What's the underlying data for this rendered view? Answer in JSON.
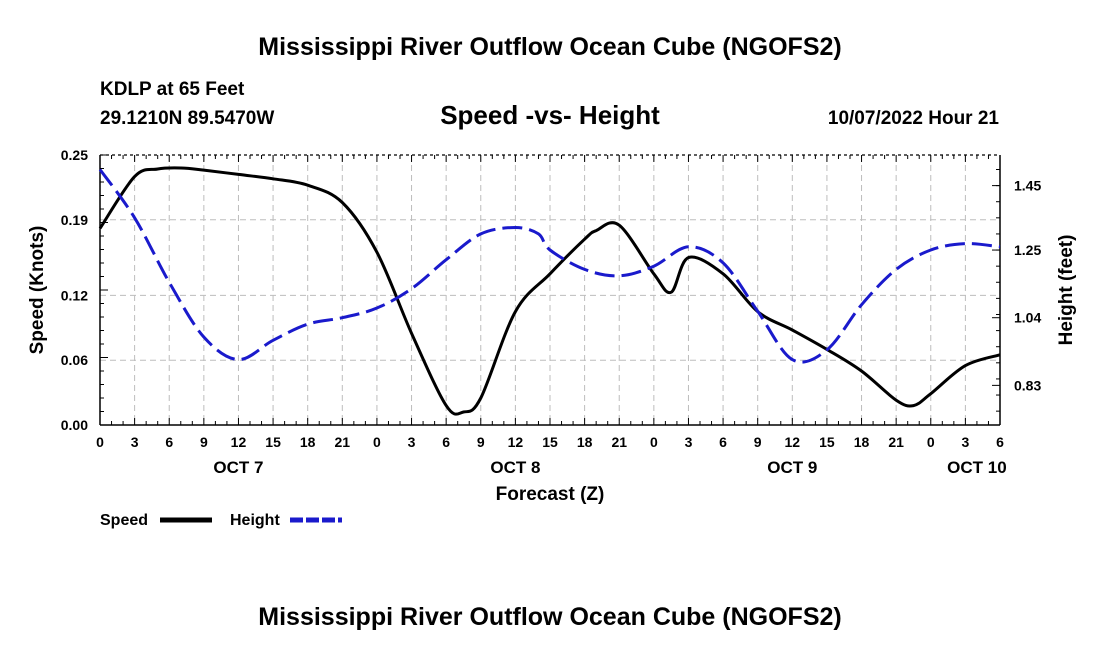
{
  "page": {
    "title_top": "Mississippi River Outflow Ocean Cube (NGOFS2)",
    "title_bottom": "Mississippi River Outflow Ocean Cube (NGOFS2)",
    "station": "KDLP at 65 Feet",
    "coords": "29.1210N  89.5470W",
    "subtitle": "Speed -vs- Height",
    "datetime": "10/07/2022 Hour 21"
  },
  "chart_data": {
    "type": "line",
    "title": "Speed -vs- Height",
    "xlabel": "Forecast (Z)",
    "ylabel": "Speed (Knots)",
    "y2label": "Height (feet)",
    "xlim": [
      0,
      78
    ],
    "ylim": [
      0,
      0.25
    ],
    "y2lim": [
      0.707,
      1.545
    ],
    "grid": true,
    "x_ticks": [
      0,
      3,
      6,
      9,
      12,
      15,
      18,
      21,
      24,
      27,
      30,
      33,
      36,
      39,
      42,
      45,
      48,
      51,
      54,
      57,
      60,
      63,
      66,
      69,
      72,
      75,
      78
    ],
    "x_tick_labels": [
      "0",
      "3",
      "6",
      "9",
      "12",
      "15",
      "18",
      "21",
      "0",
      "3",
      "6",
      "9",
      "12",
      "15",
      "18",
      "21",
      "0",
      "3",
      "6",
      "9",
      "12",
      "15",
      "18",
      "21",
      "0",
      "3",
      "6"
    ],
    "day_labels": [
      {
        "x": 12,
        "label": "OCT 7"
      },
      {
        "x": 36,
        "label": "OCT 8"
      },
      {
        "x": 60,
        "label": "OCT 9"
      },
      {
        "x": 76,
        "label": "OCT 10"
      }
    ],
    "y_ticks": [
      0.0,
      0.06,
      0.12,
      0.19,
      0.25
    ],
    "y_tick_labels": [
      "0.00",
      "0.06",
      "0.12",
      "0.19",
      "0.25"
    ],
    "y2_ticks": [
      0.83,
      1.04,
      1.25,
      1.45
    ],
    "y2_tick_labels": [
      "0.83",
      "1.04",
      "1.25",
      "1.45"
    ],
    "series": [
      {
        "name": "Speed",
        "axis": "left",
        "color": "#000000",
        "style": "solid",
        "x": [
          0,
          3,
          5,
          7,
          9,
          12,
          15,
          18,
          21,
          24,
          27,
          30,
          31.5,
          33,
          36,
          39,
          42,
          43,
          45,
          48,
          49.5,
          51,
          54,
          57,
          60,
          63,
          66,
          69,
          70.5,
          72,
          75,
          78
        ],
        "y": [
          0.182,
          0.23,
          0.237,
          0.238,
          0.236,
          0.232,
          0.228,
          0.222,
          0.206,
          0.16,
          0.085,
          0.018,
          0.012,
          0.025,
          0.105,
          0.14,
          0.172,
          0.18,
          0.185,
          0.14,
          0.123,
          0.155,
          0.14,
          0.105,
          0.088,
          0.07,
          0.05,
          0.023,
          0.018,
          0.029,
          0.055,
          0.065
        ]
      },
      {
        "name": "Height",
        "axis": "right",
        "color": "#1a1acc",
        "style": "dashed",
        "x": [
          0,
          3,
          6,
          9,
          12,
          15,
          18,
          21,
          24,
          27,
          30,
          33,
          36,
          38,
          39,
          42,
          45,
          48,
          51,
          54,
          57,
          60,
          63,
          66,
          69,
          72,
          75,
          78
        ],
        "y": [
          1.5,
          1.35,
          1.15,
          0.98,
          0.91,
          0.97,
          1.02,
          1.04,
          1.07,
          1.13,
          1.22,
          1.3,
          1.32,
          1.3,
          1.25,
          1.19,
          1.17,
          1.2,
          1.26,
          1.21,
          1.06,
          0.91,
          0.94,
          1.08,
          1.19,
          1.25,
          1.27,
          1.26
        ]
      }
    ],
    "legend": [
      {
        "label": "Speed",
        "color": "#000000",
        "style": "solid"
      },
      {
        "label": "Height",
        "color": "#1a1acc",
        "style": "dashed"
      }
    ]
  }
}
